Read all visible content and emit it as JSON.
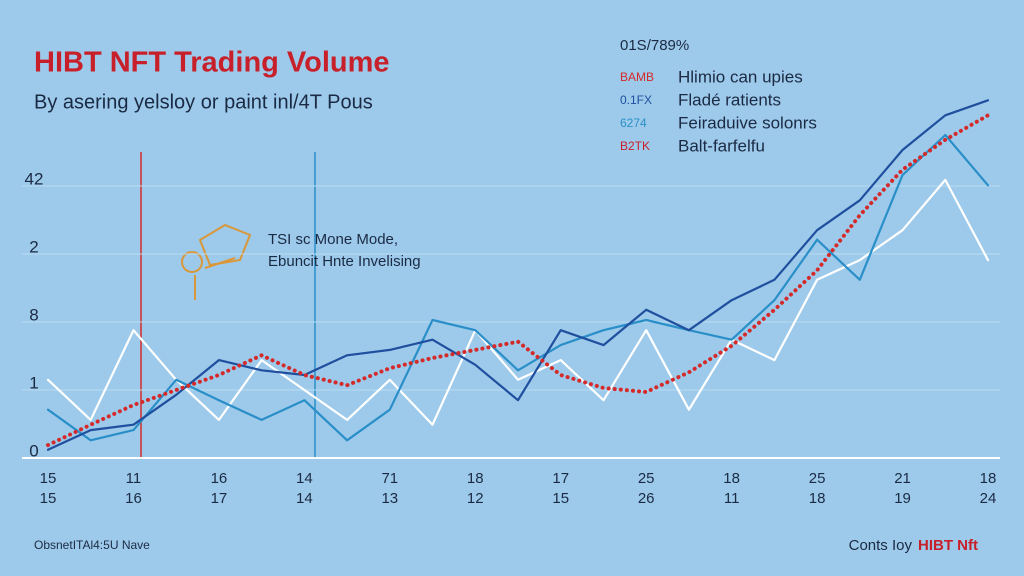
{
  "chart_data": {
    "type": "line",
    "title": "HIBT NFT Trading Volume",
    "subtitle": "By asering yelsloy or paint inl/4T Pous",
    "annotation": [
      "TSI sc Mone Mode,",
      "Ebuncit Hnte Invelising"
    ],
    "legend_title": "01S/789%",
    "legend_codes": [
      "BAMB",
      "0.1FX",
      "6274",
      "B2TK"
    ],
    "footer_left": "ObsnetITAl4:5U Nave",
    "footer_right": [
      "Conts Ioy",
      "HIBT Nft"
    ],
    "categories": [
      [
        "15",
        "15"
      ],
      [
        "11",
        "16"
      ],
      [
        "16",
        "17"
      ],
      [
        "14",
        "14"
      ],
      [
        "71",
        "13"
      ],
      [
        "18",
        "12"
      ],
      [
        "17",
        "15"
      ],
      [
        "25",
        "26"
      ],
      [
        "18",
        "11"
      ],
      [
        "25",
        "18"
      ],
      [
        "21",
        "19"
      ],
      [
        "18",
        "24"
      ]
    ],
    "x": [
      0,
      0.5,
      1,
      1.5,
      2,
      2.5,
      3,
      3.5,
      4,
      4.5,
      5,
      5.5,
      6,
      6.5,
      7,
      7.5,
      8,
      8.5,
      9,
      9.5,
      10,
      10.5,
      11
    ],
    "xlim": [
      0,
      11
    ],
    "ylim": [
      0,
      5.5
    ],
    "yticks": [
      0,
      1,
      {
        "value": 2,
        "label": "8"
      },
      {
        "value": 3,
        "label": "2"
      },
      {
        "value": 4,
        "label": "42"
      }
    ],
    "grid": true,
    "legend": "top-right",
    "series": [
      {
        "name": "Hlimio can upies",
        "color": "#d42a2a",
        "dashed": true,
        "values": [
          0.19,
          0.49,
          0.78,
          1.0,
          1.22,
          1.51,
          1.22,
          1.07,
          1.32,
          1.47,
          1.59,
          1.71,
          1.22,
          1.03,
          0.97,
          1.26,
          1.65,
          2.18,
          2.76,
          3.57,
          4.24,
          4.68,
          5.04
        ]
      },
      {
        "name": "Fladé ratients",
        "color": "#1f4f9e",
        "values": [
          0.12,
          0.41,
          0.49,
          0.93,
          1.44,
          1.29,
          1.22,
          1.51,
          1.59,
          1.74,
          1.37,
          0.85,
          1.88,
          1.66,
          2.18,
          1.88,
          2.32,
          2.62,
          3.35,
          3.79,
          4.53,
          5.04,
          5.26
        ]
      },
      {
        "name": "Feiraduive solonrs",
        "color": "#2a8fc8",
        "values": [
          0.71,
          0.26,
          0.41,
          1.15,
          0.85,
          0.56,
          0.85,
          0.26,
          0.71,
          2.03,
          1.88,
          1.29,
          1.66,
          1.88,
          2.03,
          1.88,
          1.74,
          2.32,
          3.21,
          2.62,
          4.16,
          4.75,
          4.01
        ]
      },
      {
        "name": "Balt-farfelfu",
        "color": "#ffffff",
        "values": [
          1.15,
          0.56,
          1.88,
          1.15,
          0.56,
          1.44,
          1.0,
          0.56,
          1.15,
          0.49,
          1.88,
          1.15,
          1.44,
          0.85,
          1.88,
          0.71,
          1.74,
          1.44,
          2.62,
          2.91,
          3.35,
          4.09,
          2.91
        ]
      }
    ]
  }
}
